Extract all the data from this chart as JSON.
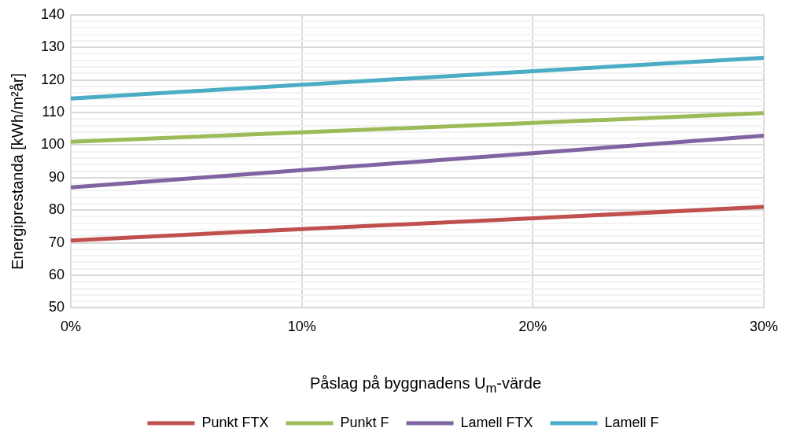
{
  "chart_data": {
    "type": "line",
    "xlabel": "Påslag på byggnadens U$_{m}$-värde",
    "ylabel": "Energiprestanda [kWh/m²år]",
    "x": [
      0,
      10,
      20,
      30
    ],
    "xlim": [
      0,
      30
    ],
    "xticks": [
      {
        "value": 0,
        "label": "0%"
      },
      {
        "value": 10,
        "label": "10%"
      },
      {
        "value": 20,
        "label": "20%"
      },
      {
        "value": 30,
        "label": "30%"
      }
    ],
    "ylim": [
      50,
      140
    ],
    "yticks": [
      50,
      {
        "value": 52,
        "label": null
      },
      {
        "value": 54,
        "label": null
      },
      {
        "value": 56,
        "label": null
      },
      {
        "value": 58,
        "label": null
      },
      60,
      {
        "value": 62,
        "label": null
      },
      {
        "value": 64,
        "label": null
      },
      {
        "value": 66,
        "label": null
      },
      {
        "value": 68,
        "label": null
      },
      70,
      {
        "value": 72,
        "label": null
      },
      {
        "value": 74,
        "label": null
      },
      {
        "value": 76,
        "label": null
      },
      {
        "value": 78,
        "label": null
      },
      80,
      {
        "value": 82,
        "label": null
      },
      {
        "value": 84,
        "label": null
      },
      {
        "value": 86,
        "label": null
      },
      {
        "value": 88,
        "label": null
      },
      90,
      {
        "value": 92,
        "label": null
      },
      {
        "value": 94,
        "label": null
      },
      {
        "value": 96,
        "label": null
      },
      {
        "value": 98,
        "label": null
      },
      100,
      {
        "value": 102,
        "label": null
      },
      {
        "value": 104,
        "label": null
      },
      {
        "value": 106,
        "label": null
      },
      {
        "value": 108,
        "label": null
      },
      110,
      {
        "value": 112,
        "label": null
      },
      {
        "value": 114,
        "label": null
      },
      {
        "value": 116,
        "label": null
      },
      {
        "value": 118,
        "label": null
      },
      120,
      {
        "value": 122,
        "label": null
      },
      {
        "value": 124,
        "label": null
      },
      {
        "value": 126,
        "label": null
      },
      {
        "value": 128,
        "label": null
      },
      130,
      {
        "value": 132,
        "label": null
      },
      {
        "value": 134,
        "label": null
      },
      {
        "value": 136,
        "label": null
      },
      {
        "value": 138,
        "label": null
      },
      140
    ],
    "grid": true,
    "legend": "bottom",
    "marker": "none",
    "line_style": "solid",
    "series": [
      {
        "name": "Punkt FTX",
        "color": "#c0504d",
        "values": [
          70.7,
          74.2,
          77.5,
          81
        ]
      },
      {
        "name": "Punkt F",
        "color": "#9bbb59",
        "values": [
          101,
          103.9,
          106.8,
          109.8
        ]
      },
      {
        "name": "Lamell FTX",
        "color": "#8064a2",
        "values": [
          87,
          92.3,
          97.5,
          102.9
        ]
      },
      {
        "name": "Lamell F",
        "color": "#4bacc6",
        "values": [
          114.3,
          118.5,
          122.7,
          126.8
        ]
      }
    ]
  }
}
